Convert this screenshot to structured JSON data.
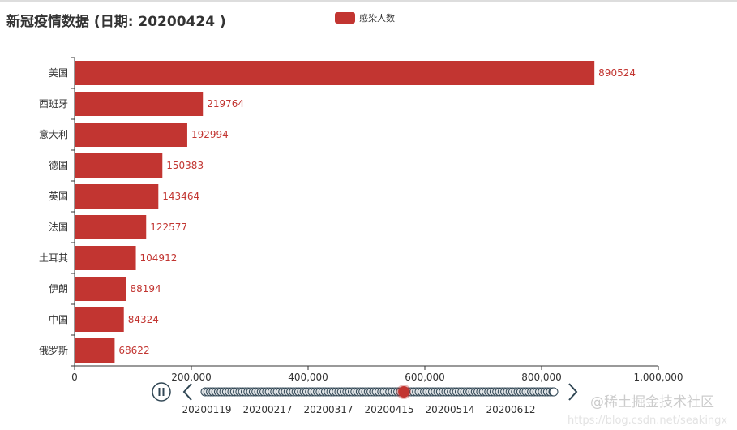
{
  "title": "新冠疫情数据 (日期: 20200424 )",
  "watermark": "@稀土掘金技术社区",
  "watermark_url": "https://blog.csdn.net/seakingx",
  "chart_data": {
    "type": "bar",
    "orientation": "horizontal",
    "title": "新冠疫情数据 (日期: 20200424 )",
    "legend": [
      "感染人数"
    ],
    "legend_placement": "top-center",
    "color": "#c23531",
    "categories": [
      "美国",
      "西班牙",
      "意大利",
      "德国",
      "英国",
      "法国",
      "土耳其",
      "伊朗",
      "中国",
      "俄罗斯"
    ],
    "values": [
      890524,
      219764,
      192994,
      150383,
      143464,
      122577,
      104912,
      88194,
      84324,
      68622
    ],
    "xlim": [
      0,
      1000000
    ],
    "xticks": [
      "0",
      "200,000",
      "400,000",
      "600,000",
      "800,000",
      "1,000,000"
    ],
    "grid": false
  },
  "timeline": {
    "labels": [
      "20200119",
      "20200217",
      "20200317",
      "20200415",
      "20200514",
      "20200612"
    ],
    "progress": 0.57,
    "play_state": "playing"
  }
}
